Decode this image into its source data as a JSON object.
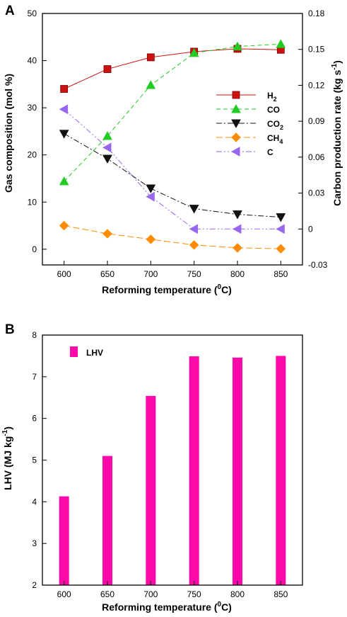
{
  "panels": {
    "a": "A",
    "b": "B"
  },
  "chart_data": [
    {
      "type": "line",
      "panel": "A",
      "x": [
        600,
        650,
        700,
        750,
        800,
        850
      ],
      "xlabel_main": "Reforming temperature (",
      "xlabel_sup": "0",
      "xlabel_end": "C)",
      "ylabel": "Gas composition (mol %)",
      "ylabel_right_main": "Carbon production rate (kg s",
      "ylabel_right_sup": "-1",
      "ylabel_right_end": ")",
      "xlim": [
        575,
        875
      ],
      "ylim": [
        -3.33,
        50
      ],
      "y2lim": [
        -0.03,
        0.18
      ],
      "xticks": [
        "600",
        "650",
        "700",
        "750",
        "800",
        "850"
      ],
      "yticks": [
        "0",
        "10",
        "20",
        "30",
        "40",
        "50"
      ],
      "y2ticks": [
        "-0.03",
        "0",
        "0.03",
        "0.06",
        "0.09",
        "0.12",
        "0.15",
        "0.18"
      ],
      "legend_position": "right-middle",
      "series": [
        {
          "name": "H",
          "name_sub": "2",
          "axis": "left",
          "marker": "square",
          "dash": "",
          "color": "#cc1111",
          "values": [
            34.0,
            38.2,
            40.7,
            41.9,
            42.5,
            42.3
          ]
        },
        {
          "name": "CO",
          "name_sub": "",
          "axis": "left",
          "marker": "triangle-up",
          "dash": "6,4",
          "color": "#22cc22",
          "values": [
            14.4,
            24.0,
            34.8,
            41.6,
            43.0,
            43.5
          ]
        },
        {
          "name": "CO",
          "name_sub": "2",
          "axis": "left",
          "marker": "triangle-down",
          "dash": "8,3,2,3",
          "color": "#111111",
          "values": [
            24.5,
            19.2,
            12.9,
            8.6,
            7.4,
            6.8
          ]
        },
        {
          "name": "CH",
          "name_sub": "4",
          "axis": "left",
          "marker": "diamond",
          "dash": "9,4",
          "color": "#ff8c00",
          "values": [
            5.0,
            3.3,
            2.1,
            0.9,
            0.3,
            0.1
          ]
        },
        {
          "name": "C",
          "name_sub": "",
          "axis": "right",
          "marker": "triangle-left",
          "dash": "8,3,2,3,2,3",
          "color": "#9966ee",
          "values": [
            0.1,
            0.068,
            0.027,
            0.0,
            0.0,
            0.0
          ]
        }
      ]
    },
    {
      "type": "bar",
      "panel": "B",
      "categories": [
        "600",
        "650",
        "700",
        "750",
        "800",
        "850"
      ],
      "values": [
        4.13,
        5.1,
        6.54,
        7.49,
        7.46,
        7.5
      ],
      "xlabel_main": "Reforming temperature (",
      "xlabel_sup": "0",
      "xlabel_end": "C)",
      "ylabel_main": "LHV (MJ kg",
      "ylabel_sup": "-1",
      "ylabel_end": ")",
      "ylim": [
        2,
        8
      ],
      "yticks": [
        "2",
        "3",
        "4",
        "5",
        "6",
        "7",
        "8"
      ],
      "legend": "LHV",
      "legend_position": "top-left",
      "color": "#ff0aa8"
    }
  ]
}
